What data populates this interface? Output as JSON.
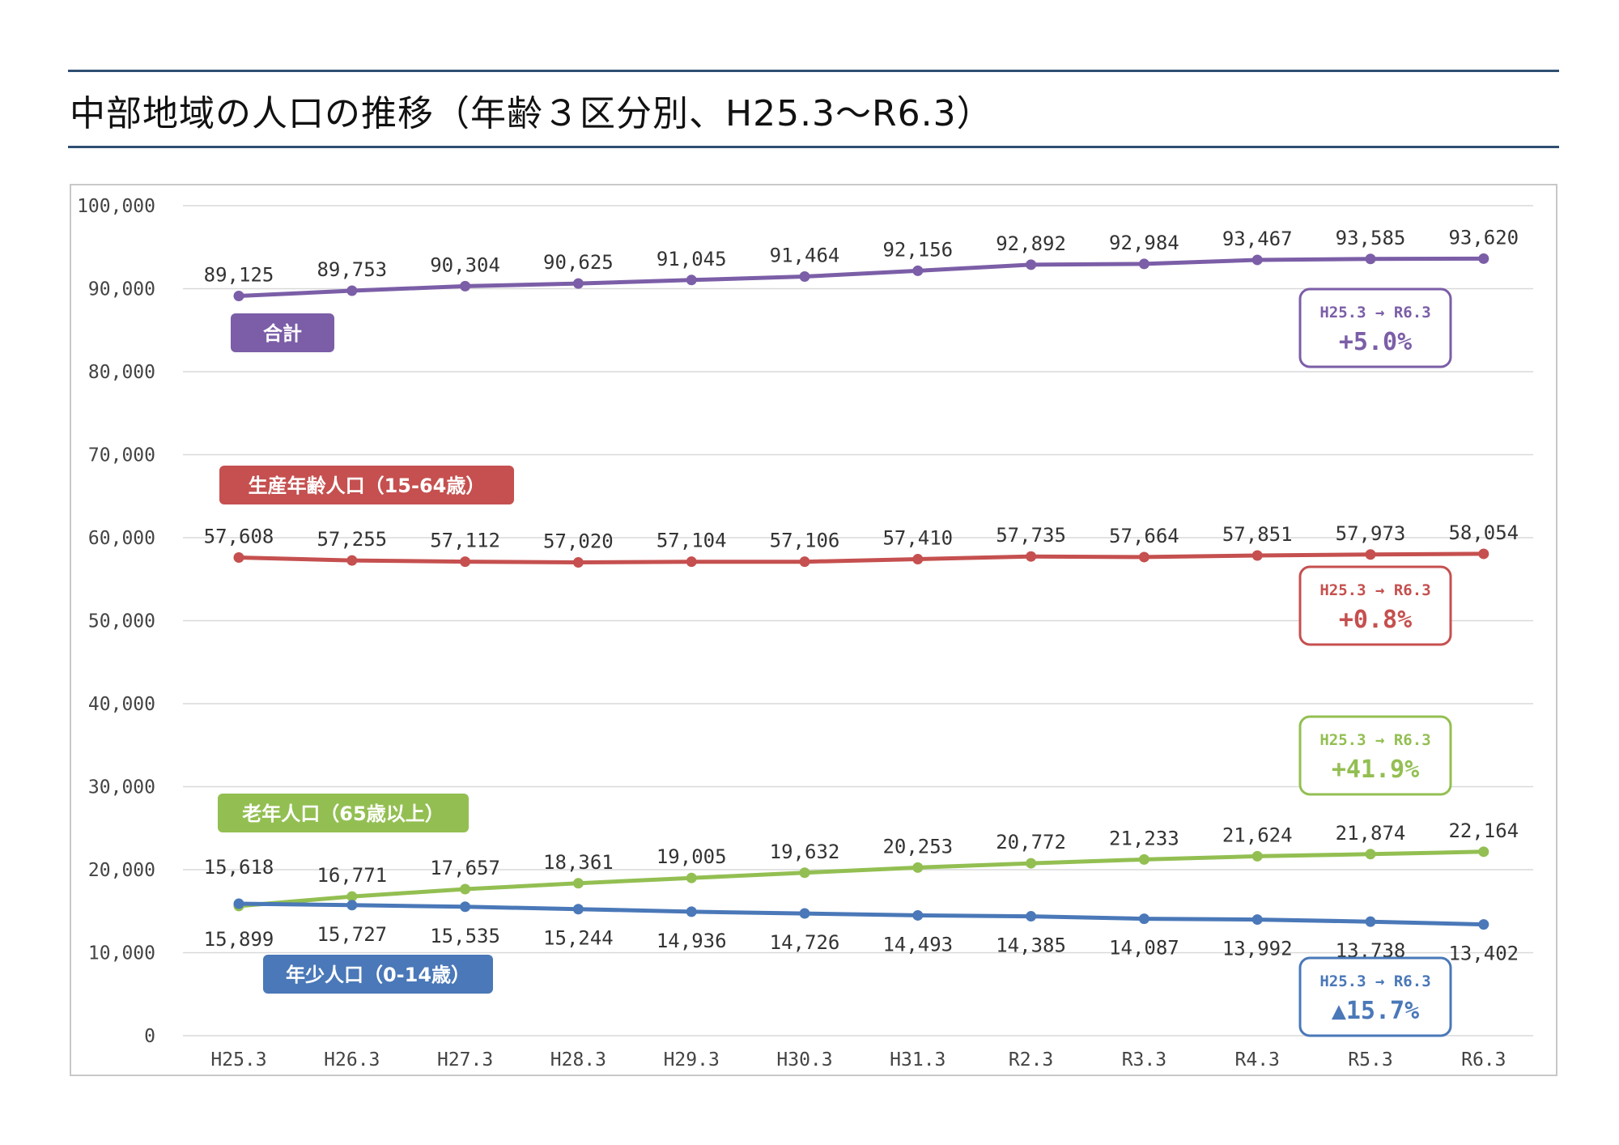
{
  "page": {
    "title": "中部地域の人口の推移（年齢３区分別、H25.3～R6.3）"
  },
  "chart_data": {
    "type": "line",
    "title": "中部地域の人口の推移（年齢３区分別、H25.3～R6.3）",
    "categories": [
      "H25.3",
      "H26.3",
      "H27.3",
      "H28.3",
      "H29.3",
      "H30.3",
      "H31.3",
      "R2.3",
      "R3.3",
      "R4.3",
      "R5.3",
      "R6.3"
    ],
    "ylim": [
      0,
      100000
    ],
    "y_ticks": [
      0,
      10000,
      20000,
      30000,
      40000,
      50000,
      60000,
      70000,
      80000,
      90000,
      100000
    ],
    "y_tick_labels": [
      "0",
      "10,000",
      "20,000",
      "30,000",
      "40,000",
      "50,000",
      "60,000",
      "70,000",
      "80,000",
      "90,000",
      "100,000"
    ],
    "grid": true,
    "series": [
      {
        "key": "total",
        "name": "合計",
        "color": "#7b5ea7",
        "values": [
          89125,
          89753,
          90304,
          90625,
          91045,
          91464,
          92156,
          92892,
          92984,
          93467,
          93585,
          93620
        ],
        "labels": [
          "89,125",
          "89,753",
          "90,304",
          "90,625",
          "91,045",
          "91,464",
          "92,156",
          "92,892",
          "92,984",
          "93,467",
          "93,585",
          "93,620"
        ],
        "label_position": "above",
        "change_period": "H25.3 → R6.3",
        "change": "+5.0%"
      },
      {
        "key": "working",
        "name": "生産年齢人口（15-64歳）",
        "color": "#c5504f",
        "values": [
          57608,
          57255,
          57112,
          57020,
          57104,
          57106,
          57410,
          57735,
          57664,
          57851,
          57973,
          58054
        ],
        "labels": [
          "57,608",
          "57,255",
          "57,112",
          "57,020",
          "57,104",
          "57,106",
          "57,410",
          "57,735",
          "57,664",
          "57,851",
          "57,973",
          "58,054"
        ],
        "label_position": "above",
        "change_period": "H25.3 → R6.3",
        "change": "+0.8%"
      },
      {
        "key": "elderly",
        "name": "老年人口（65歳以上）",
        "color": "#93bf52",
        "values": [
          15618,
          16771,
          17657,
          18361,
          19005,
          19632,
          20253,
          20772,
          21233,
          21624,
          21874,
          22164
        ],
        "labels": [
          "15,618",
          "16,771",
          "17,657",
          "18,361",
          "19,005",
          "19,632",
          "20,253",
          "20,772",
          "21,233",
          "21,624",
          "21,874",
          "22,164"
        ],
        "label_position": "above",
        "change_period": "H25.3 → R6.3",
        "change": "+41.9%"
      },
      {
        "key": "young",
        "name": "年少人口（0-14歳）",
        "color": "#4a78b8",
        "values": [
          15899,
          15727,
          15535,
          15244,
          14936,
          14726,
          14493,
          14385,
          14087,
          13992,
          13738,
          13402
        ],
        "labels": [
          "15,899",
          "15,727",
          "15,535",
          "15,244",
          "14,936",
          "14,726",
          "14,493",
          "14,385",
          "14,087",
          "13,992",
          "13,738",
          "13,402"
        ],
        "label_position": "below",
        "change_period": "H25.3 → R6.3",
        "change": "▲15.7%"
      }
    ]
  }
}
